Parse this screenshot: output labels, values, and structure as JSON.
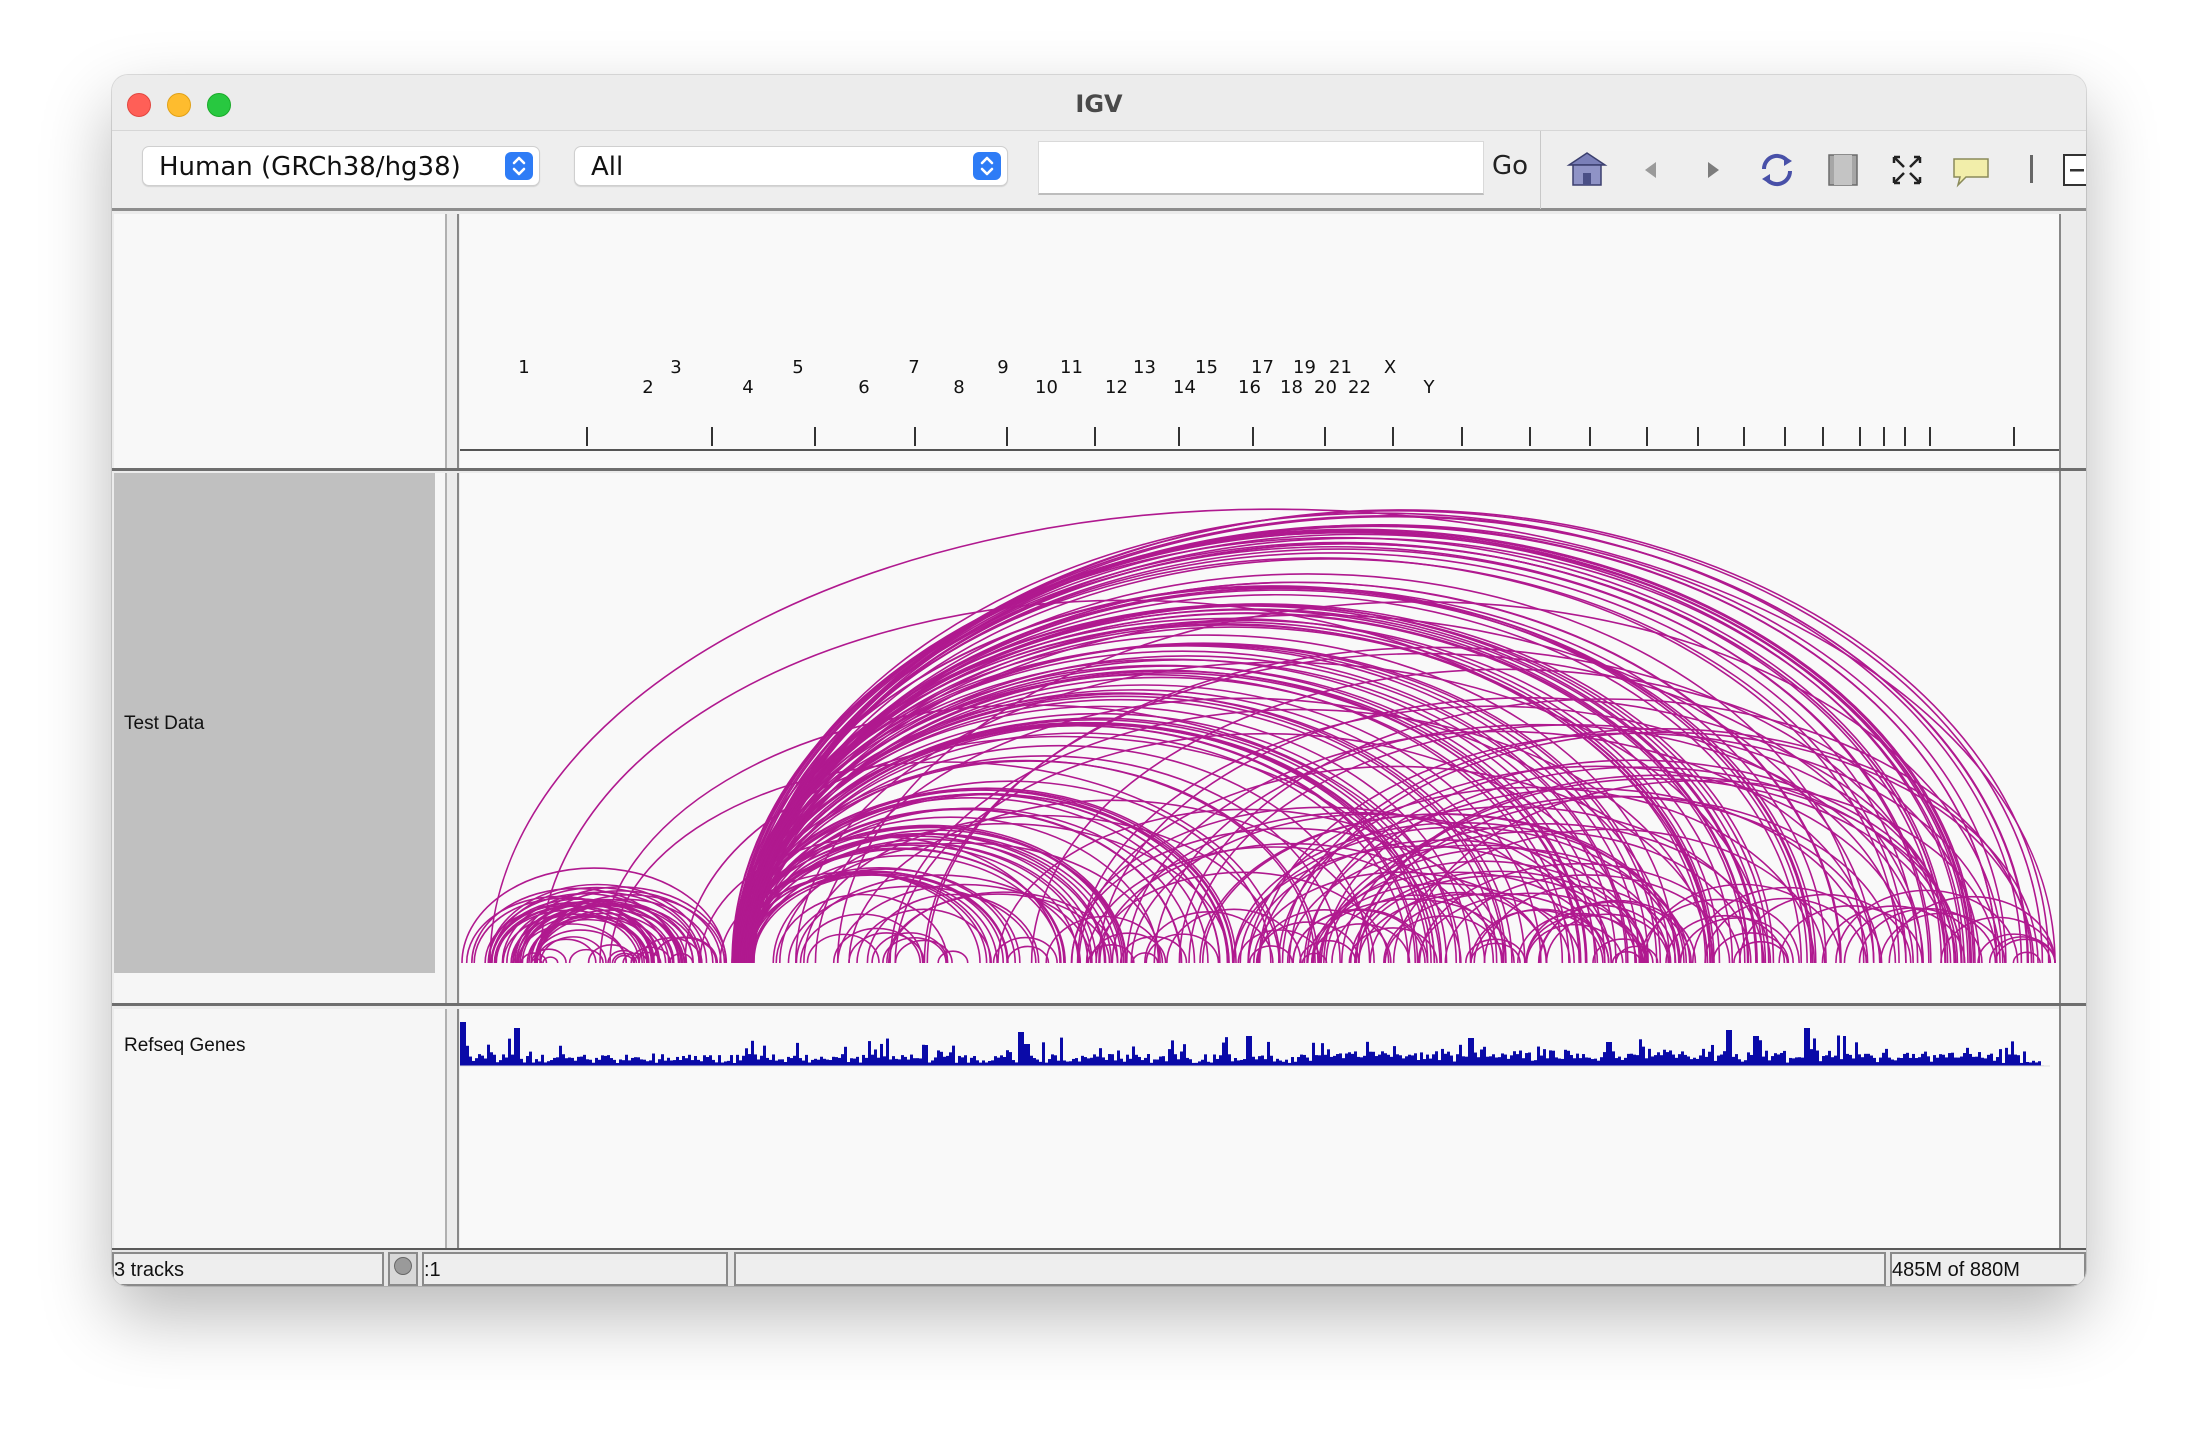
{
  "window": {
    "title": "IGV"
  },
  "toolbar": {
    "genome_select": "Human (GRCh38/hg38)",
    "chromosome_select": "All",
    "locus_input": "",
    "go_label": "Go",
    "icons": [
      "home-icon",
      "back-arrow-icon",
      "forward-arrow-icon",
      "refresh-icon",
      "region-of-interest-icon",
      "fit-to-window-icon",
      "popup-info-icon",
      "zoom-out-icon"
    ]
  },
  "ruler": {
    "chromosomes_top": [
      "1",
      "3",
      "5",
      "7",
      "9",
      "11",
      "13",
      "15",
      "17",
      "19",
      "21",
      "X"
    ],
    "chromosomes_bottom": [
      "2",
      "4",
      "6",
      "8",
      "10",
      "12",
      "14",
      "16",
      "18",
      "20",
      "22",
      "Y"
    ]
  },
  "tracks": {
    "test_data": {
      "name": "Test Data",
      "color": "#b0198f"
    },
    "refseq_genes": {
      "name": "Refseq Genes",
      "color": "#0a0aa8"
    }
  },
  "statusbar": {
    "tracks_count": "3 tracks",
    "position": ":1",
    "message": "",
    "memory": "485M of 880M"
  },
  "colors": {
    "arc": "#b0198f",
    "gene_density": "#0a0aa8",
    "name_panel": "#c0c0c0",
    "accent": "#2e7cf6"
  }
}
